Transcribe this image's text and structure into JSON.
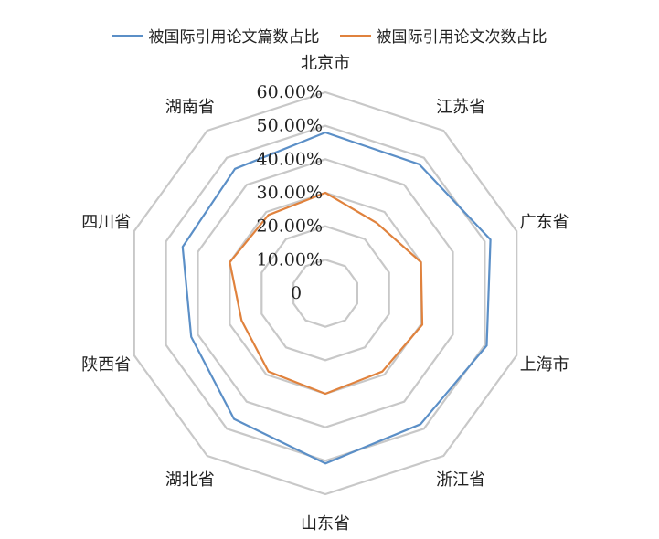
{
  "chart_data": {
    "type": "radar",
    "categories": [
      "北京市",
      "江苏省",
      "广东省",
      "上海市",
      "浙江省",
      "山东省",
      "湖北省",
      "陕西省",
      "四川省",
      "湖南省"
    ],
    "series": [
      {
        "name": "被国际引用论文篇数占比",
        "color": "#5B8FC7",
        "values": [
          48.0,
          47.6,
          51.8,
          50.6,
          48.3,
          50.8,
          46.4,
          42.1,
          44.8,
          45.9
        ]
      },
      {
        "name": "被国际引用论文次数占比",
        "color": "#E0823D",
        "values": [
          30.0,
          26.0,
          30.0,
          30.4,
          28.9,
          30.0,
          28.9,
          26.3,
          30.0,
          28.9
        ]
      }
    ],
    "r_ticks": [
      "0",
      "10.00%",
      "20.00%",
      "30.00%",
      "40.00%",
      "50.00%",
      "60.00%"
    ],
    "r_max": 60,
    "grid": true,
    "legend_position": "top"
  }
}
